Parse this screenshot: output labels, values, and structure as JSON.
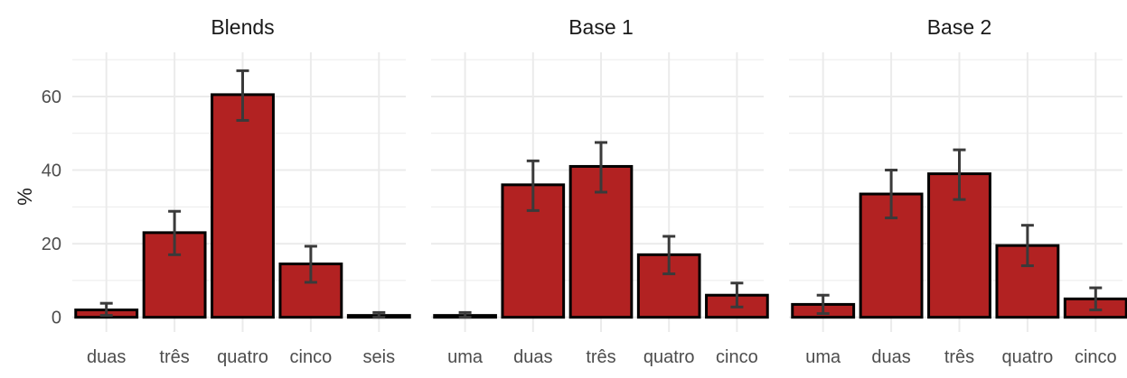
{
  "ylabel": "%",
  "colors": {
    "bar_fill": "#B22222",
    "bar_stroke": "#000000",
    "error_bar": "#3a3a3a",
    "grid": "#ebebeb",
    "text": "#4d4d4d"
  },
  "chart_data": {
    "type": "bar",
    "ylim": [
      -4,
      72
    ],
    "yticks": [
      0,
      20,
      40,
      60
    ],
    "grid": true,
    "facets": [
      {
        "title": "Blends",
        "categories": [
          "duas",
          "três",
          "quatro",
          "cinco",
          "seis"
        ],
        "values": [
          2,
          23,
          60.5,
          14.5,
          0.5
        ],
        "error_low": [
          0.5,
          17,
          53.5,
          9.5,
          0
        ],
        "error_high": [
          3.8,
          28.8,
          67,
          19.3,
          1.3
        ]
      },
      {
        "title": "Base 1",
        "categories": [
          "uma",
          "duas",
          "três",
          "quatro",
          "cinco"
        ],
        "values": [
          0.5,
          36,
          41,
          17,
          6
        ],
        "error_low": [
          0,
          29,
          34,
          11.8,
          2.8
        ],
        "error_high": [
          1.3,
          42.5,
          47.5,
          22,
          9.3
        ]
      },
      {
        "title": "Base 2",
        "categories": [
          "uma",
          "duas",
          "três",
          "quatro",
          "cinco"
        ],
        "values": [
          3.5,
          33.5,
          39,
          19.5,
          5
        ],
        "error_low": [
          1,
          27,
          32,
          14,
          2
        ],
        "error_high": [
          6,
          40,
          45.5,
          25,
          8
        ]
      }
    ]
  }
}
